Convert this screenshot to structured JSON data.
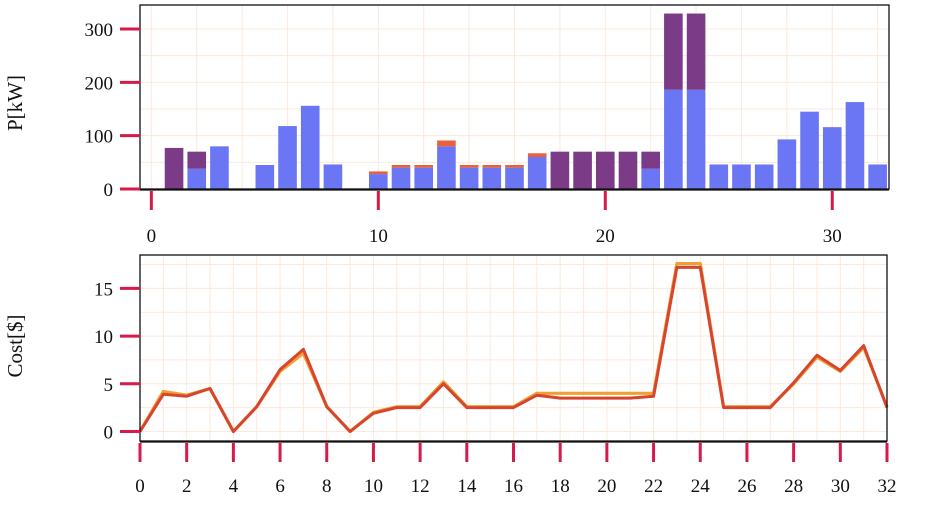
{
  "colors": {
    "bar_lower": "#6b76f5",
    "bar_upper": "#7b3b86",
    "bar_top": "#e8613c",
    "grid": "#fbe9dc",
    "tick": "#d61a4a",
    "cost_line_main": "#d8452f",
    "cost_line_alt": "#f0a030"
  },
  "chart_data": [
    {
      "type": "bar",
      "stacked": true,
      "ylabel": "P[kW]",
      "xlim": [
        -0.5,
        32.5
      ],
      "ylim": [
        0,
        345
      ],
      "xticks": [
        0,
        10,
        20,
        30
      ],
      "yticks": [
        0,
        100,
        200,
        300
      ],
      "grid": true,
      "categories": [
        0,
        1,
        2,
        3,
        4,
        5,
        6,
        7,
        8,
        9,
        10,
        11,
        12,
        13,
        14,
        15,
        16,
        17,
        18,
        19,
        20,
        21,
        22,
        23,
        24,
        25,
        26,
        27,
        28,
        29,
        30,
        31,
        32
      ],
      "series": [
        {
          "key": "lower",
          "values": [
            0,
            0,
            38,
            80,
            0,
            45,
            118,
            156,
            46,
            0,
            28,
            40,
            40,
            80,
            40,
            40,
            40,
            60,
            0,
            0,
            0,
            0,
            38,
            186,
            186,
            46,
            46,
            46,
            93,
            145,
            116,
            163,
            46
          ]
        },
        {
          "key": "upper",
          "values": [
            0,
            77,
            32,
            0,
            0,
            0,
            0,
            0,
            0,
            0,
            0,
            0,
            0,
            0,
            0,
            0,
            0,
            0,
            70,
            70,
            70,
            70,
            32,
            143,
            143,
            0,
            0,
            0,
            0,
            0,
            0,
            0,
            0
          ]
        },
        {
          "key": "top",
          "values": [
            0,
            0,
            0,
            0,
            0,
            0,
            0,
            0,
            0,
            0,
            5,
            5,
            5,
            11,
            5,
            5,
            5,
            7,
            0,
            0,
            0,
            0,
            0,
            0,
            0,
            0,
            0,
            0,
            0,
            0,
            0,
            0,
            0
          ]
        }
      ]
    },
    {
      "type": "line",
      "ylabel": "Cost[$]",
      "xlim": [
        0,
        32
      ],
      "ylim": [
        -1,
        18.5
      ],
      "xticks": [
        0,
        2,
        4,
        6,
        8,
        10,
        12,
        14,
        16,
        18,
        20,
        22,
        24,
        26,
        28,
        30,
        32
      ],
      "yticks": [
        0,
        5,
        10,
        15
      ],
      "grid": true,
      "x": [
        0,
        1,
        2,
        3,
        4,
        5,
        6,
        7,
        8,
        9,
        10,
        11,
        12,
        13,
        14,
        15,
        16,
        17,
        18,
        19,
        20,
        21,
        22,
        23,
        24,
        25,
        26,
        27,
        28,
        29,
        30,
        31,
        32
      ],
      "series": [
        {
          "key": "alt",
          "values": [
            0,
            4.2,
            3.8,
            4.5,
            0,
            2.6,
            6.3,
            8.2,
            2.6,
            0,
            2.0,
            2.6,
            2.6,
            5.2,
            2.6,
            2.6,
            2.6,
            4.0,
            4.0,
            4.0,
            4.0,
            4.0,
            4.0,
            17.6,
            17.6,
            2.6,
            2.6,
            2.6,
            5.0,
            7.8,
            6.3,
            8.8,
            2.6
          ]
        },
        {
          "key": "main",
          "values": [
            0,
            3.9,
            3.7,
            4.5,
            0,
            2.6,
            6.5,
            8.6,
            2.6,
            0,
            1.9,
            2.5,
            2.5,
            5.0,
            2.5,
            2.5,
            2.5,
            3.8,
            3.5,
            3.5,
            3.5,
            3.5,
            3.7,
            17.2,
            17.2,
            2.5,
            2.5,
            2.5,
            5.1,
            8.0,
            6.4,
            9.0,
            2.5
          ]
        }
      ]
    }
  ]
}
